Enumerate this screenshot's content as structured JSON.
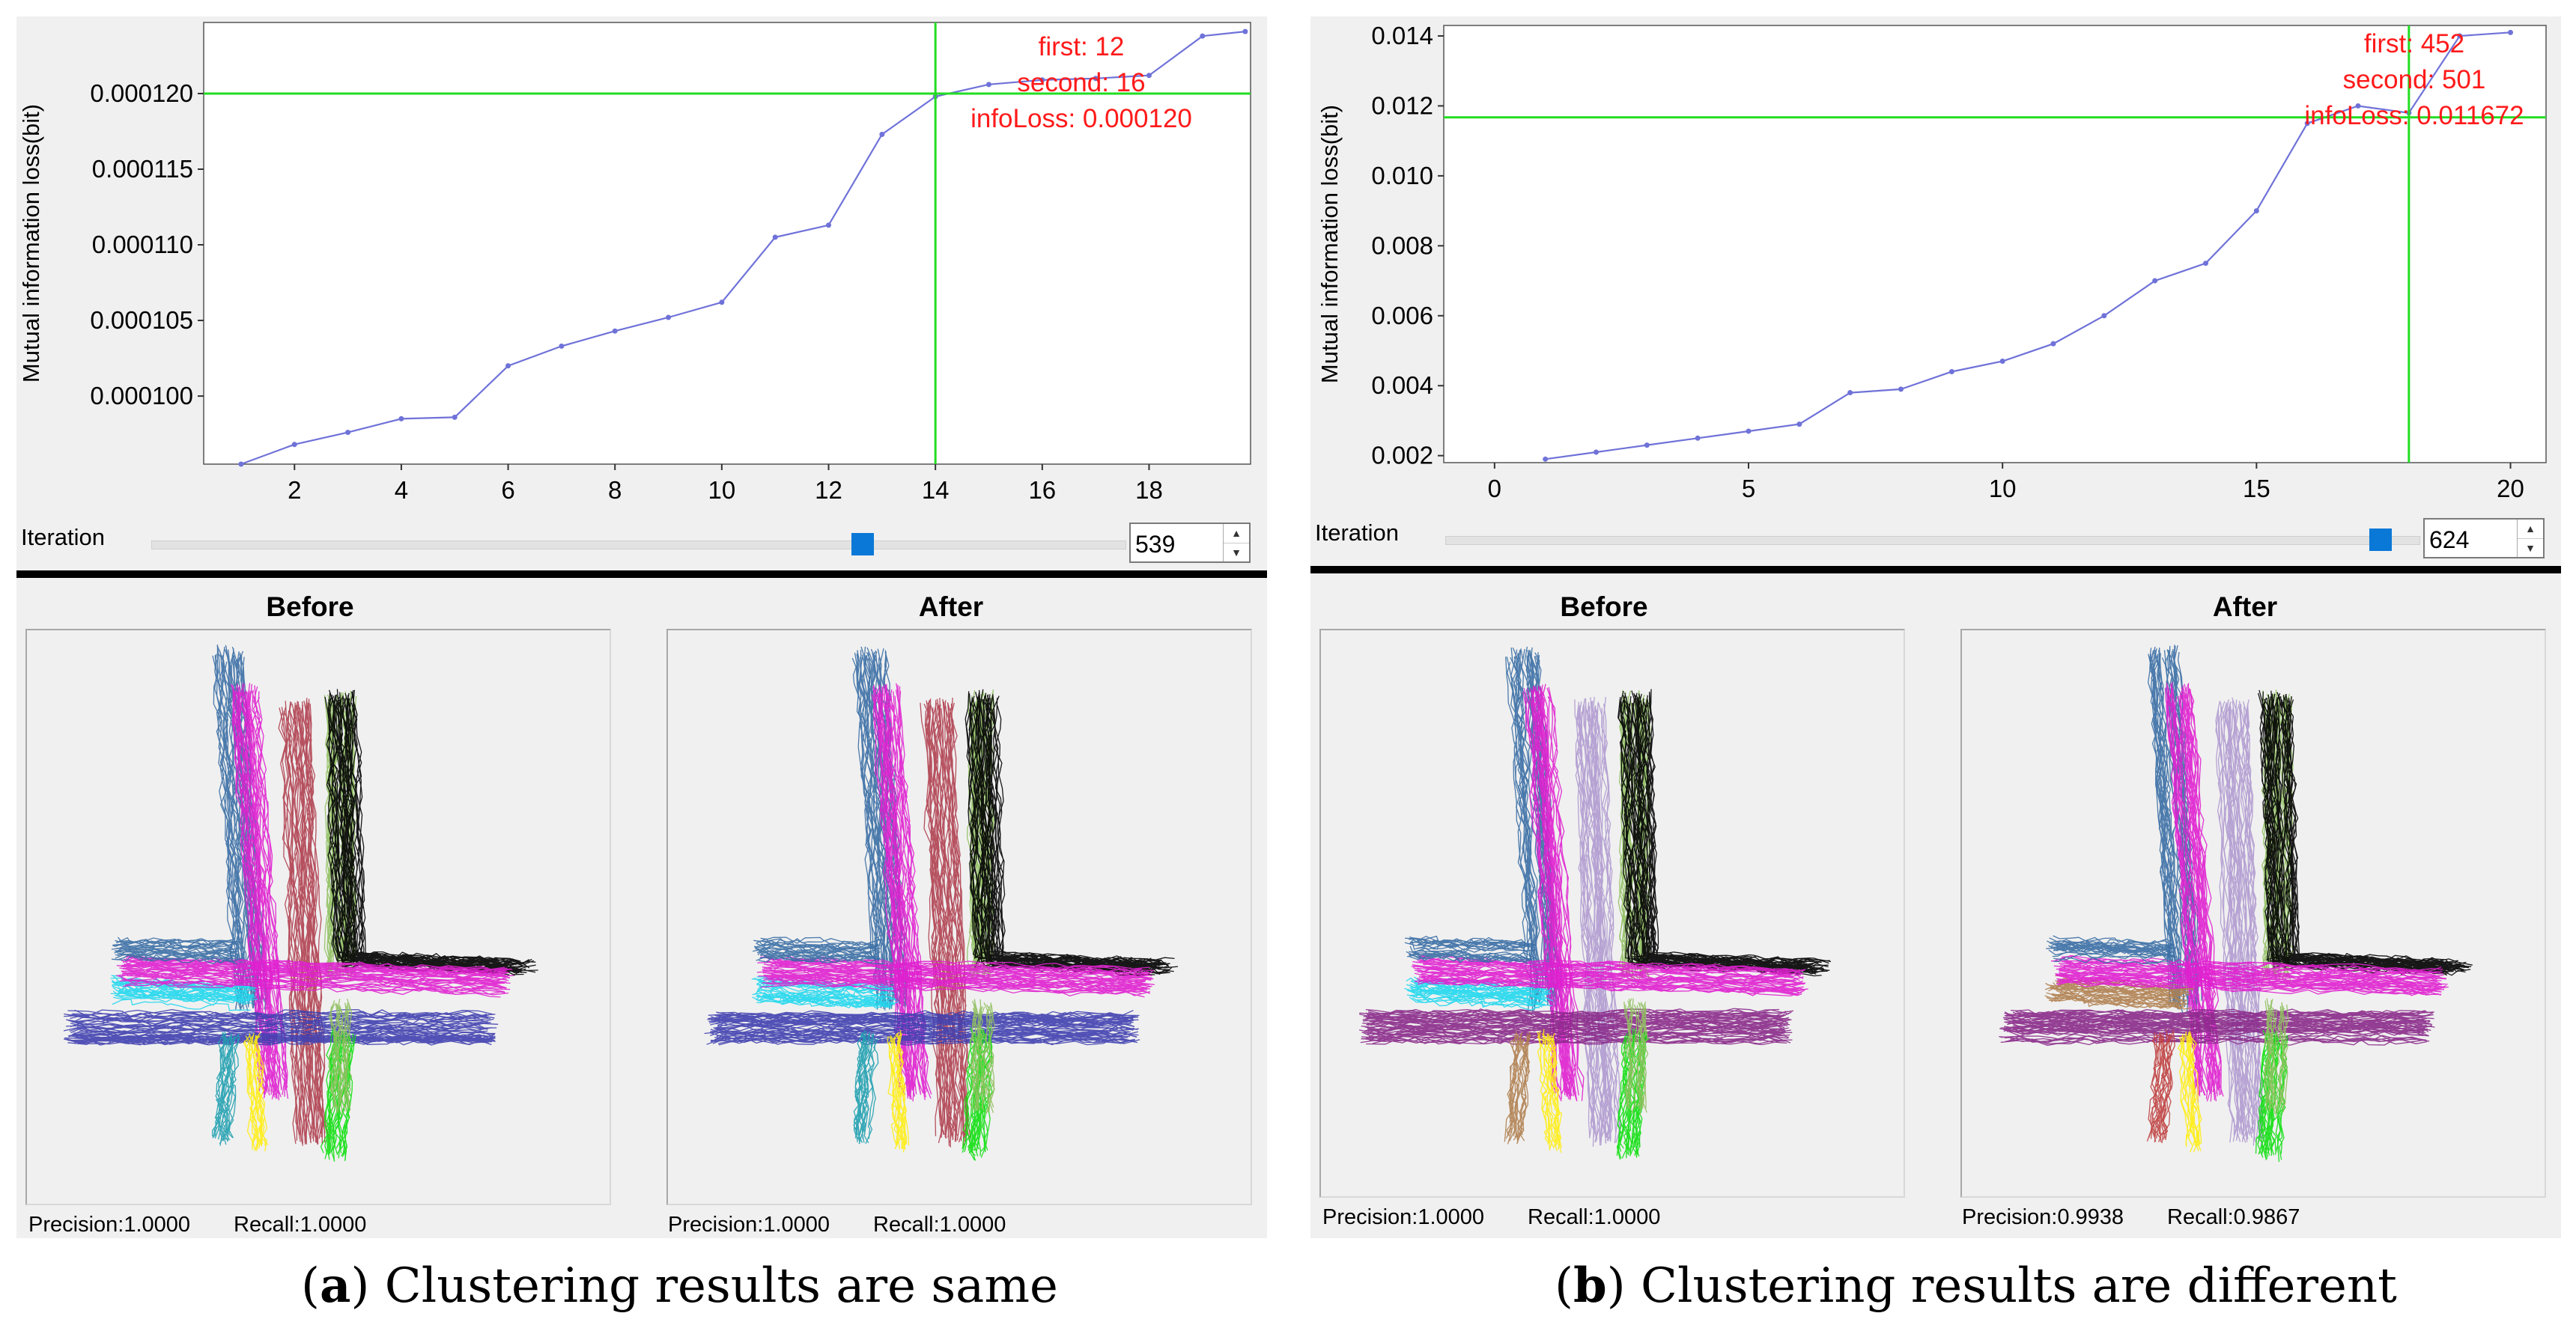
{
  "panels": {
    "a": {
      "chart_data": {
        "type": "line",
        "ylabel": "Mutual information loss(bit)",
        "xlabel": "Iteration",
        "x": [
          1,
          2,
          3,
          4,
          5,
          6,
          7,
          8,
          9,
          10,
          11,
          12,
          13,
          14,
          15,
          16,
          17,
          18,
          19,
          19.8
        ],
        "y": [
          9.55e-05,
          9.68e-05,
          9.76e-05,
          9.85e-05,
          9.86e-05,
          0.000102,
          0.0001033,
          0.0001043,
          0.0001052,
          0.0001062,
          0.0001105,
          0.0001113,
          0.0001173,
          0.0001198,
          0.0001206,
          0.0001209,
          0.000121,
          0.0001212,
          0.0001238,
          0.0001241
        ],
        "xlim": [
          0.3,
          19.9
        ],
        "ylim": [
          9.55e-05,
          0.0001247
        ],
        "xticks": [
          2,
          4,
          6,
          8,
          10,
          12,
          14,
          16,
          18
        ],
        "yticks": [
          0.0001,
          0.000105,
          0.00011,
          0.000115,
          0.00012
        ],
        "ytick_labels": [
          "0.000100",
          "0.000105",
          "0.000110",
          "0.000115",
          "0.000120"
        ],
        "crosshair": {
          "x": 14,
          "y": 0.00012
        },
        "annotation": [
          "first: 12",
          "second: 16",
          "infoLoss: 0.000120"
        ]
      },
      "slider": {
        "label": "Iteration",
        "value": "539",
        "fraction": 0.73
      },
      "before": {
        "title": "Before",
        "precision": "Precision:1.0000",
        "recall": "Recall:1.0000"
      },
      "after": {
        "title": "After",
        "precision": "Precision:1.0000",
        "recall": "Recall:1.0000"
      },
      "caption": {
        "letter": "a",
        "text": "Clustering results are same"
      }
    },
    "b": {
      "chart_data": {
        "type": "line",
        "ylabel": "Mutual information loss(bit)",
        "xlabel": "Iteration",
        "x": [
          1,
          2,
          3,
          4,
          5,
          6,
          7,
          8,
          9,
          10,
          11,
          12,
          13,
          14,
          15,
          16,
          17,
          18,
          19,
          20
        ],
        "y": [
          0.0019,
          0.0021,
          0.0023,
          0.0025,
          0.0027,
          0.0029,
          0.0038,
          0.0039,
          0.0044,
          0.0047,
          0.0052,
          0.006,
          0.007,
          0.0075,
          0.009,
          0.0115,
          0.012,
          0.0118,
          0.014,
          0.0141
        ],
        "xlim": [
          -1,
          20.7
        ],
        "ylim": [
          0.0018,
          0.0143
        ],
        "xticks": [
          0,
          5,
          10,
          15,
          20
        ],
        "yticks": [
          0.002,
          0.004,
          0.006,
          0.008,
          0.01,
          0.012,
          0.014
        ],
        "ytick_labels": [
          "0.002",
          "0.004",
          "0.006",
          "0.008",
          "0.010",
          "0.012",
          "0.014"
        ],
        "crosshair": {
          "x": 18,
          "y": 0.011672
        },
        "annotation": [
          "first: 452",
          "second: 501",
          "infoLoss: 0.011672"
        ]
      },
      "slider": {
        "label": "Iteration",
        "value": "624",
        "fraction": 0.96
      },
      "before": {
        "title": "Before",
        "precision": "Precision:1.0000",
        "recall": "Recall:1.0000"
      },
      "after": {
        "title": "After",
        "precision": "Precision:0.9938",
        "recall": "Recall:0.9867"
      },
      "caption": {
        "letter": "b",
        "text": "Clustering results are different"
      }
    }
  },
  "colors": {
    "line": "#6f72d8",
    "crosshair": "#22dd22",
    "annotation": "#ff1a1a",
    "slider_thumb": "#0a78d7",
    "traj_a_before": [
      "#3a6ea5",
      "#e020d0",
      "#b04050",
      "#90c060",
      "#000000",
      "#20d8ee",
      "#4040b0",
      "#10e010",
      "#ffee10",
      "#20a0b0"
    ],
    "traj_a_after": [
      "#3a6ea5",
      "#e020d0",
      "#b04050",
      "#90c060",
      "#000000",
      "#20d8ee",
      "#4040b0",
      "#10e010",
      "#ffee10",
      "#20a0b0"
    ],
    "traj_b_before": [
      "#3a6ea5",
      "#e020d0",
      "#b09ad0",
      "#90c060",
      "#000000",
      "#20d8ee",
      "#8a2a8a",
      "#10e010",
      "#ffee10",
      "#b08050"
    ],
    "traj_b_after": [
      "#3a6ea5",
      "#e020d0",
      "#b09ad0",
      "#90c060",
      "#000000",
      "#b08050",
      "#8a2a8a",
      "#10e010",
      "#ffee10",
      "#c04040"
    ]
  }
}
